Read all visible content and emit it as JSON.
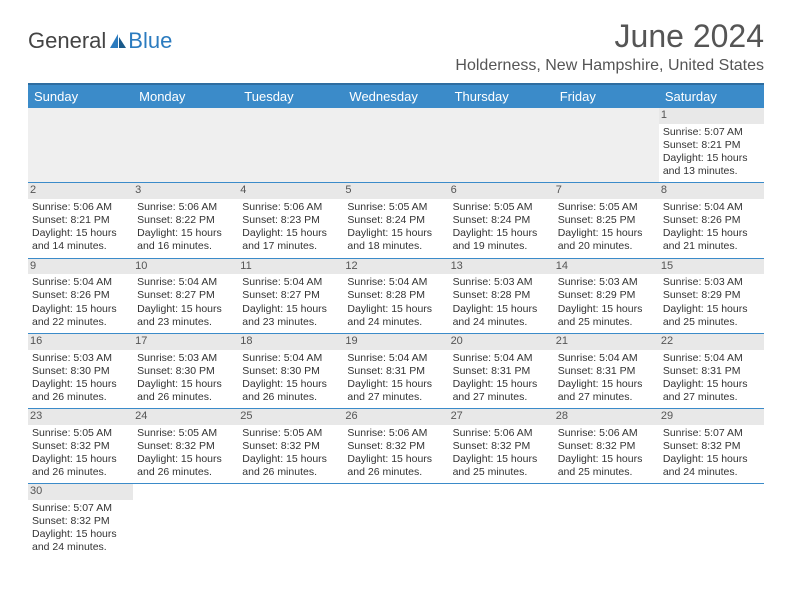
{
  "logo": {
    "text1": "General",
    "text2": "Blue"
  },
  "title": "June 2024",
  "subtitle": "Holderness, New Hampshire, United States",
  "colors": {
    "header_bg": "#3b8bc9",
    "header_border": "#2e6da0",
    "row_divider": "#3b8bc9",
    "daynum_bg": "#e8e8e8",
    "body_text": "#333333",
    "title_text": "#555555"
  },
  "weekdays": [
    "Sunday",
    "Monday",
    "Tuesday",
    "Wednesday",
    "Thursday",
    "Friday",
    "Saturday"
  ],
  "weeks": [
    [
      null,
      null,
      null,
      null,
      null,
      null,
      {
        "d": "1",
        "sr": "Sunrise: 5:07 AM",
        "ss": "Sunset: 8:21 PM",
        "dl": "Daylight: 15 hours and 13 minutes."
      }
    ],
    [
      {
        "d": "2",
        "sr": "Sunrise: 5:06 AM",
        "ss": "Sunset: 8:21 PM",
        "dl": "Daylight: 15 hours and 14 minutes."
      },
      {
        "d": "3",
        "sr": "Sunrise: 5:06 AM",
        "ss": "Sunset: 8:22 PM",
        "dl": "Daylight: 15 hours and 16 minutes."
      },
      {
        "d": "4",
        "sr": "Sunrise: 5:06 AM",
        "ss": "Sunset: 8:23 PM",
        "dl": "Daylight: 15 hours and 17 minutes."
      },
      {
        "d": "5",
        "sr": "Sunrise: 5:05 AM",
        "ss": "Sunset: 8:24 PM",
        "dl": "Daylight: 15 hours and 18 minutes."
      },
      {
        "d": "6",
        "sr": "Sunrise: 5:05 AM",
        "ss": "Sunset: 8:24 PM",
        "dl": "Daylight: 15 hours and 19 minutes."
      },
      {
        "d": "7",
        "sr": "Sunrise: 5:05 AM",
        "ss": "Sunset: 8:25 PM",
        "dl": "Daylight: 15 hours and 20 minutes."
      },
      {
        "d": "8",
        "sr": "Sunrise: 5:04 AM",
        "ss": "Sunset: 8:26 PM",
        "dl": "Daylight: 15 hours and 21 minutes."
      }
    ],
    [
      {
        "d": "9",
        "sr": "Sunrise: 5:04 AM",
        "ss": "Sunset: 8:26 PM",
        "dl": "Daylight: 15 hours and 22 minutes."
      },
      {
        "d": "10",
        "sr": "Sunrise: 5:04 AM",
        "ss": "Sunset: 8:27 PM",
        "dl": "Daylight: 15 hours and 23 minutes."
      },
      {
        "d": "11",
        "sr": "Sunrise: 5:04 AM",
        "ss": "Sunset: 8:27 PM",
        "dl": "Daylight: 15 hours and 23 minutes."
      },
      {
        "d": "12",
        "sr": "Sunrise: 5:04 AM",
        "ss": "Sunset: 8:28 PM",
        "dl": "Daylight: 15 hours and 24 minutes."
      },
      {
        "d": "13",
        "sr": "Sunrise: 5:03 AM",
        "ss": "Sunset: 8:28 PM",
        "dl": "Daylight: 15 hours and 24 minutes."
      },
      {
        "d": "14",
        "sr": "Sunrise: 5:03 AM",
        "ss": "Sunset: 8:29 PM",
        "dl": "Daylight: 15 hours and 25 minutes."
      },
      {
        "d": "15",
        "sr": "Sunrise: 5:03 AM",
        "ss": "Sunset: 8:29 PM",
        "dl": "Daylight: 15 hours and 25 minutes."
      }
    ],
    [
      {
        "d": "16",
        "sr": "Sunrise: 5:03 AM",
        "ss": "Sunset: 8:30 PM",
        "dl": "Daylight: 15 hours and 26 minutes."
      },
      {
        "d": "17",
        "sr": "Sunrise: 5:03 AM",
        "ss": "Sunset: 8:30 PM",
        "dl": "Daylight: 15 hours and 26 minutes."
      },
      {
        "d": "18",
        "sr": "Sunrise: 5:04 AM",
        "ss": "Sunset: 8:30 PM",
        "dl": "Daylight: 15 hours and 26 minutes."
      },
      {
        "d": "19",
        "sr": "Sunrise: 5:04 AM",
        "ss": "Sunset: 8:31 PM",
        "dl": "Daylight: 15 hours and 27 minutes."
      },
      {
        "d": "20",
        "sr": "Sunrise: 5:04 AM",
        "ss": "Sunset: 8:31 PM",
        "dl": "Daylight: 15 hours and 27 minutes."
      },
      {
        "d": "21",
        "sr": "Sunrise: 5:04 AM",
        "ss": "Sunset: 8:31 PM",
        "dl": "Daylight: 15 hours and 27 minutes."
      },
      {
        "d": "22",
        "sr": "Sunrise: 5:04 AM",
        "ss": "Sunset: 8:31 PM",
        "dl": "Daylight: 15 hours and 27 minutes."
      }
    ],
    [
      {
        "d": "23",
        "sr": "Sunrise: 5:05 AM",
        "ss": "Sunset: 8:32 PM",
        "dl": "Daylight: 15 hours and 26 minutes."
      },
      {
        "d": "24",
        "sr": "Sunrise: 5:05 AM",
        "ss": "Sunset: 8:32 PM",
        "dl": "Daylight: 15 hours and 26 minutes."
      },
      {
        "d": "25",
        "sr": "Sunrise: 5:05 AM",
        "ss": "Sunset: 8:32 PM",
        "dl": "Daylight: 15 hours and 26 minutes."
      },
      {
        "d": "26",
        "sr": "Sunrise: 5:06 AM",
        "ss": "Sunset: 8:32 PM",
        "dl": "Daylight: 15 hours and 26 minutes."
      },
      {
        "d": "27",
        "sr": "Sunrise: 5:06 AM",
        "ss": "Sunset: 8:32 PM",
        "dl": "Daylight: 15 hours and 25 minutes."
      },
      {
        "d": "28",
        "sr": "Sunrise: 5:06 AM",
        "ss": "Sunset: 8:32 PM",
        "dl": "Daylight: 15 hours and 25 minutes."
      },
      {
        "d": "29",
        "sr": "Sunrise: 5:07 AM",
        "ss": "Sunset: 8:32 PM",
        "dl": "Daylight: 15 hours and 24 minutes."
      }
    ],
    [
      {
        "d": "30",
        "sr": "Sunrise: 5:07 AM",
        "ss": "Sunset: 8:32 PM",
        "dl": "Daylight: 15 hours and 24 minutes."
      },
      null,
      null,
      null,
      null,
      null,
      null
    ]
  ]
}
